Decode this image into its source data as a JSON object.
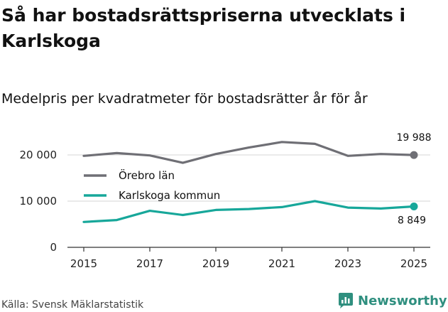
{
  "title": "Så har bostadsrättspriserna utvecklats i Karlskoga",
  "subtitle": "Medelpris per kvadratmeter för bostadsrätter år för år",
  "source": "Källa: Svensk Mäklarstatistik",
  "brand": {
    "name": "Newsworthy",
    "icon": "newsworthy-logo-icon",
    "color": "#2f8f7f"
  },
  "chart_data": {
    "type": "line",
    "x": [
      2015,
      2016,
      2017,
      2018,
      2019,
      2020,
      2021,
      2022,
      2023,
      2024,
      2025
    ],
    "xticks": [
      2015,
      2017,
      2019,
      2021,
      2023,
      2025
    ],
    "xtick_labels": [
      "2015",
      "2017",
      "2019",
      "2021",
      "2023",
      "2025"
    ],
    "yticks": [
      0,
      10000,
      20000
    ],
    "ytick_labels": [
      "0",
      "10 000",
      "20 000"
    ],
    "ylim": [
      0,
      20000
    ],
    "xlim": [
      2015,
      2025
    ],
    "grid": true,
    "legend_position": "upper-left",
    "series": [
      {
        "name": "Örebro län",
        "color": "#6f6f75",
        "values": [
          19800,
          20400,
          19900,
          18300,
          20200,
          21600,
          22800,
          22400,
          19800,
          20200,
          19988
        ],
        "end_label": "19 988"
      },
      {
        "name": "Karlskoga kommun",
        "color": "#17a79a",
        "values": [
          5500,
          5900,
          7900,
          7000,
          8100,
          8300,
          8700,
          10000,
          8600,
          8400,
          8849
        ],
        "end_label": "8 849"
      }
    ]
  }
}
